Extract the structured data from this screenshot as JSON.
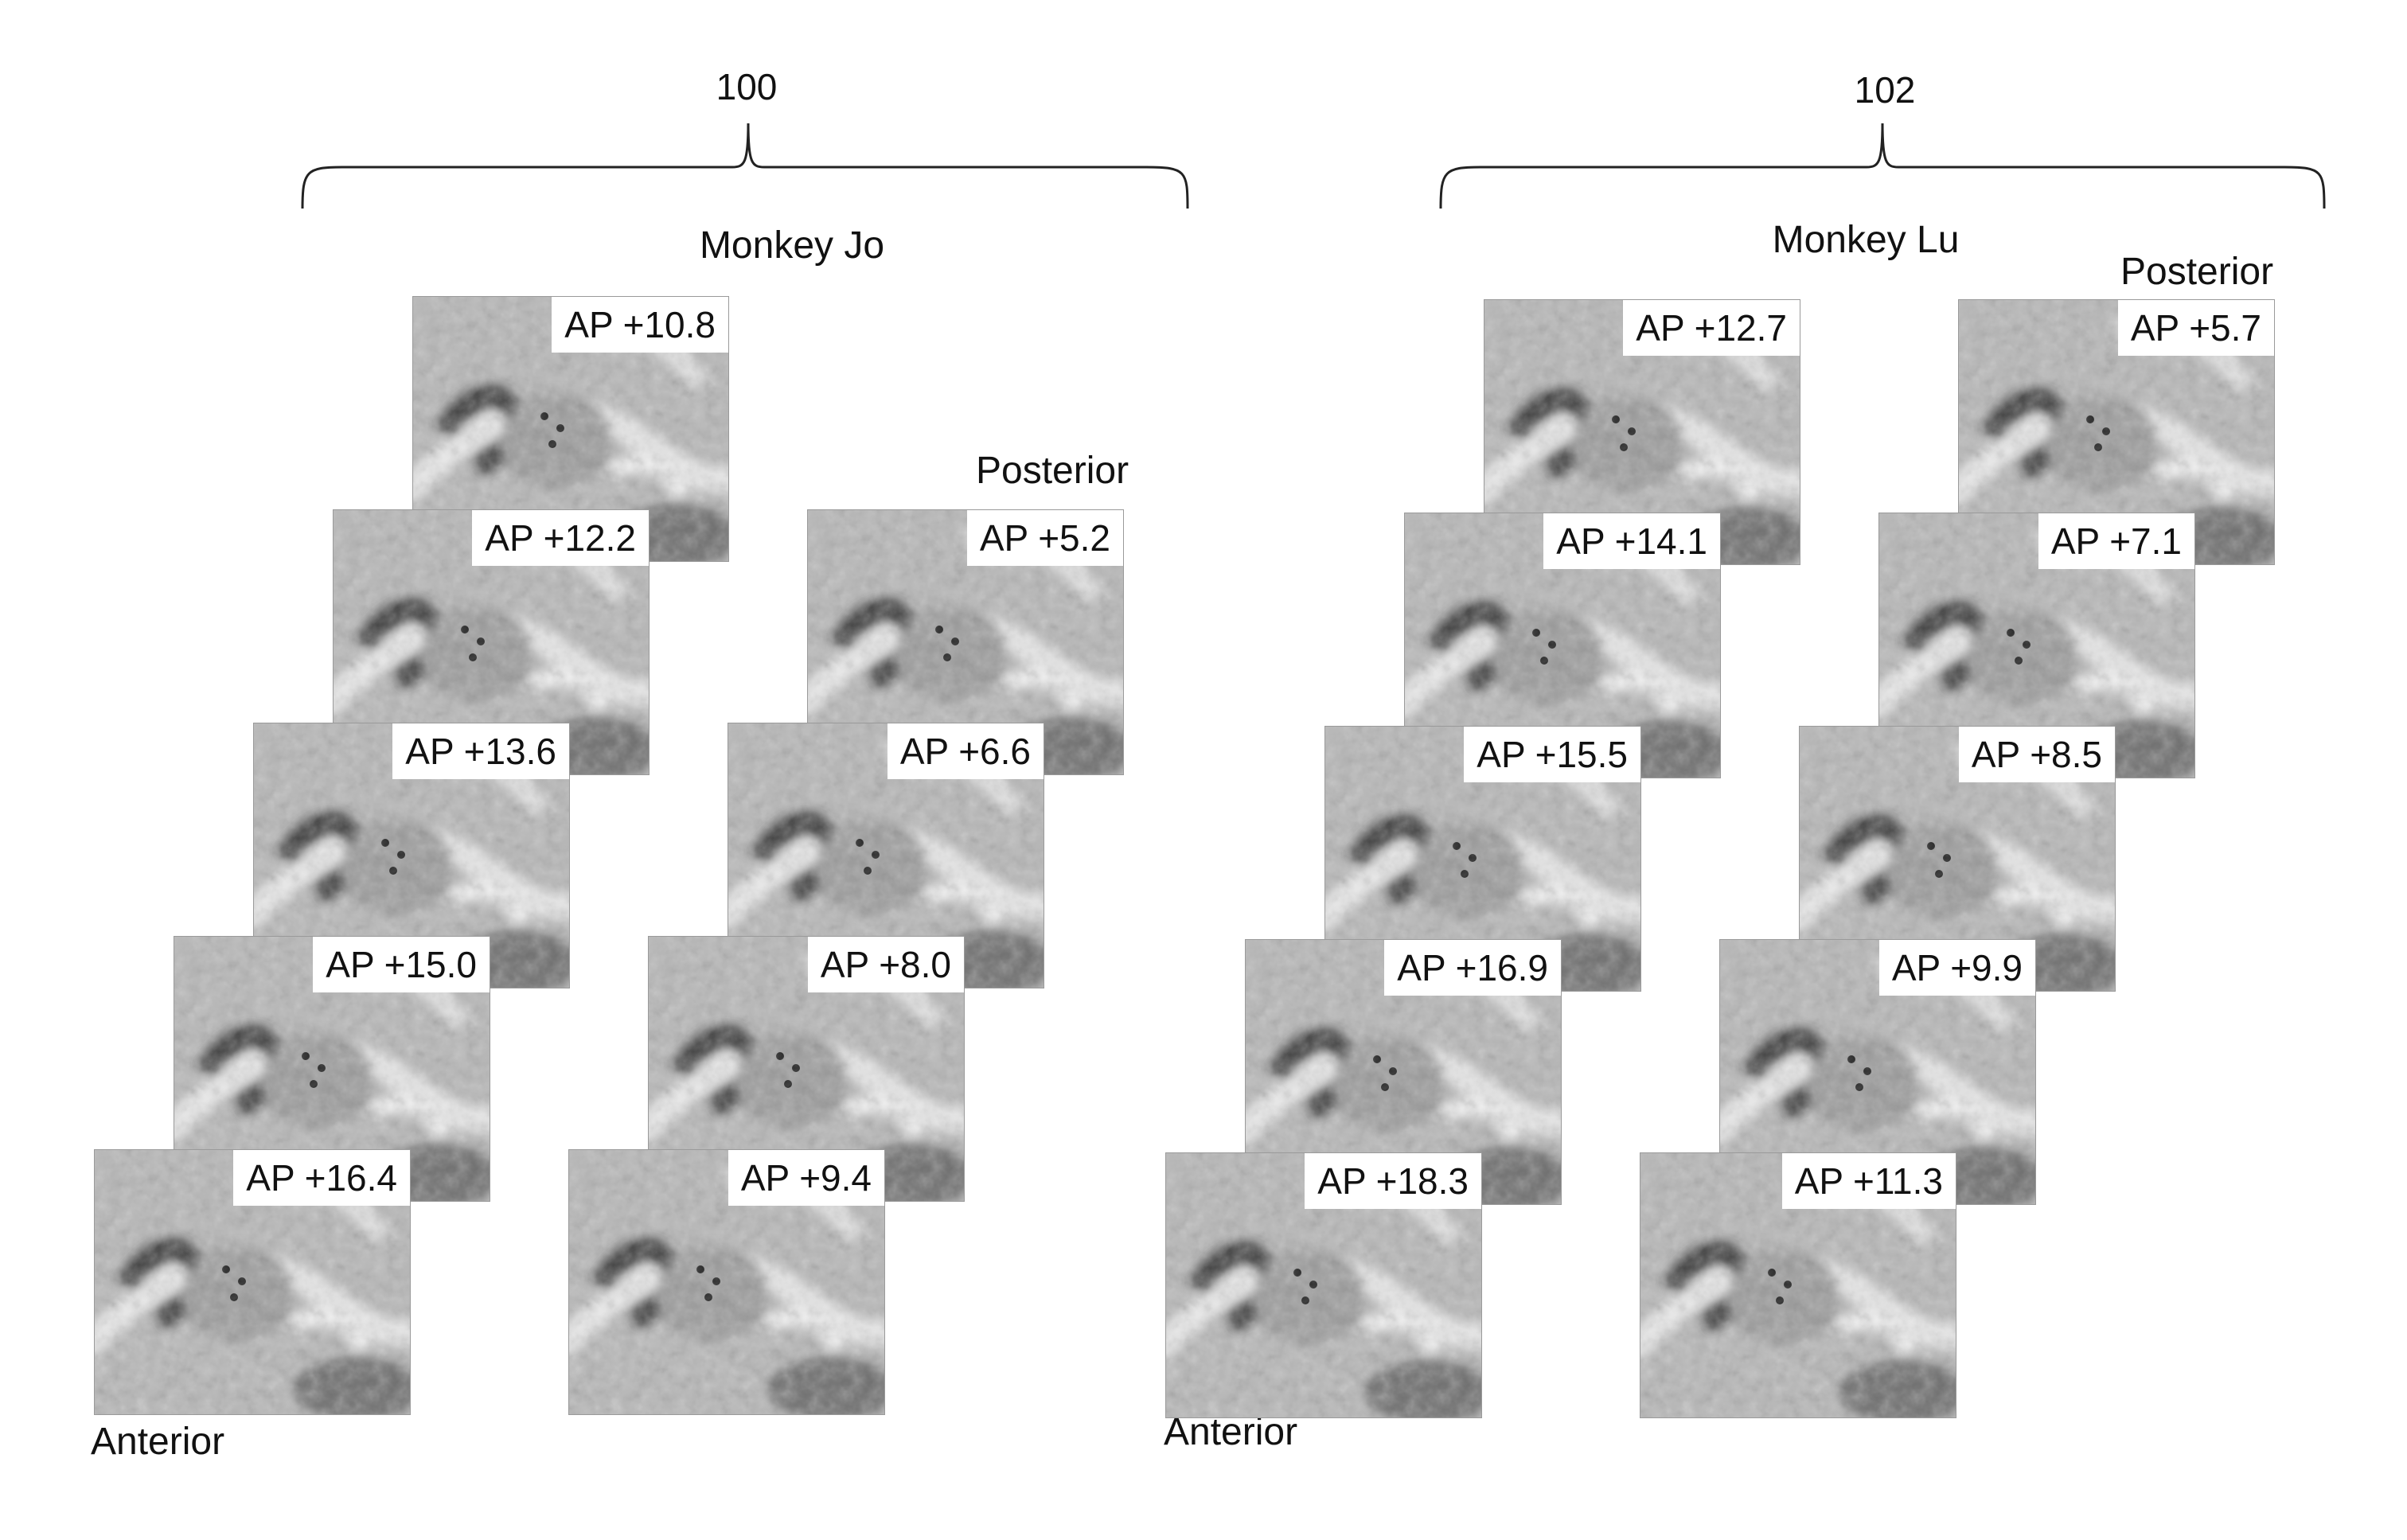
{
  "figure": {
    "groups": [
      {
        "reference_number": "100",
        "title": "Monkey Jo",
        "posterior_label": "Posterior",
        "anterior_label": "Anterior",
        "columns": [
          {
            "slices": [
              "AP +10.8",
              "AP +12.2",
              "AP +13.6",
              "AP +15.0",
              "AP +16.4"
            ]
          },
          {
            "slices": [
              "AP +5.2",
              "AP +6.6",
              "AP +8.0",
              "AP +9.4"
            ]
          }
        ]
      },
      {
        "reference_number": "102",
        "title": "Monkey Lu",
        "posterior_label": "Posterior",
        "anterior_label": "Anterior",
        "columns": [
          {
            "slices": [
              "AP +12.7",
              "AP +14.1",
              "AP +15.5",
              "AP +16.9",
              "AP +18.3"
            ]
          },
          {
            "slices": [
              "AP +5.7",
              "AP +7.1",
              "AP +8.5",
              "AP +9.9",
              "AP +11.3"
            ]
          }
        ]
      }
    ],
    "colors": {
      "background": "#ffffff",
      "tissue_gray": "#b5b5b5",
      "white_matter": "#e6e6e6",
      "dark_matter": "#2c2c2c",
      "marker": "#111111"
    }
  }
}
